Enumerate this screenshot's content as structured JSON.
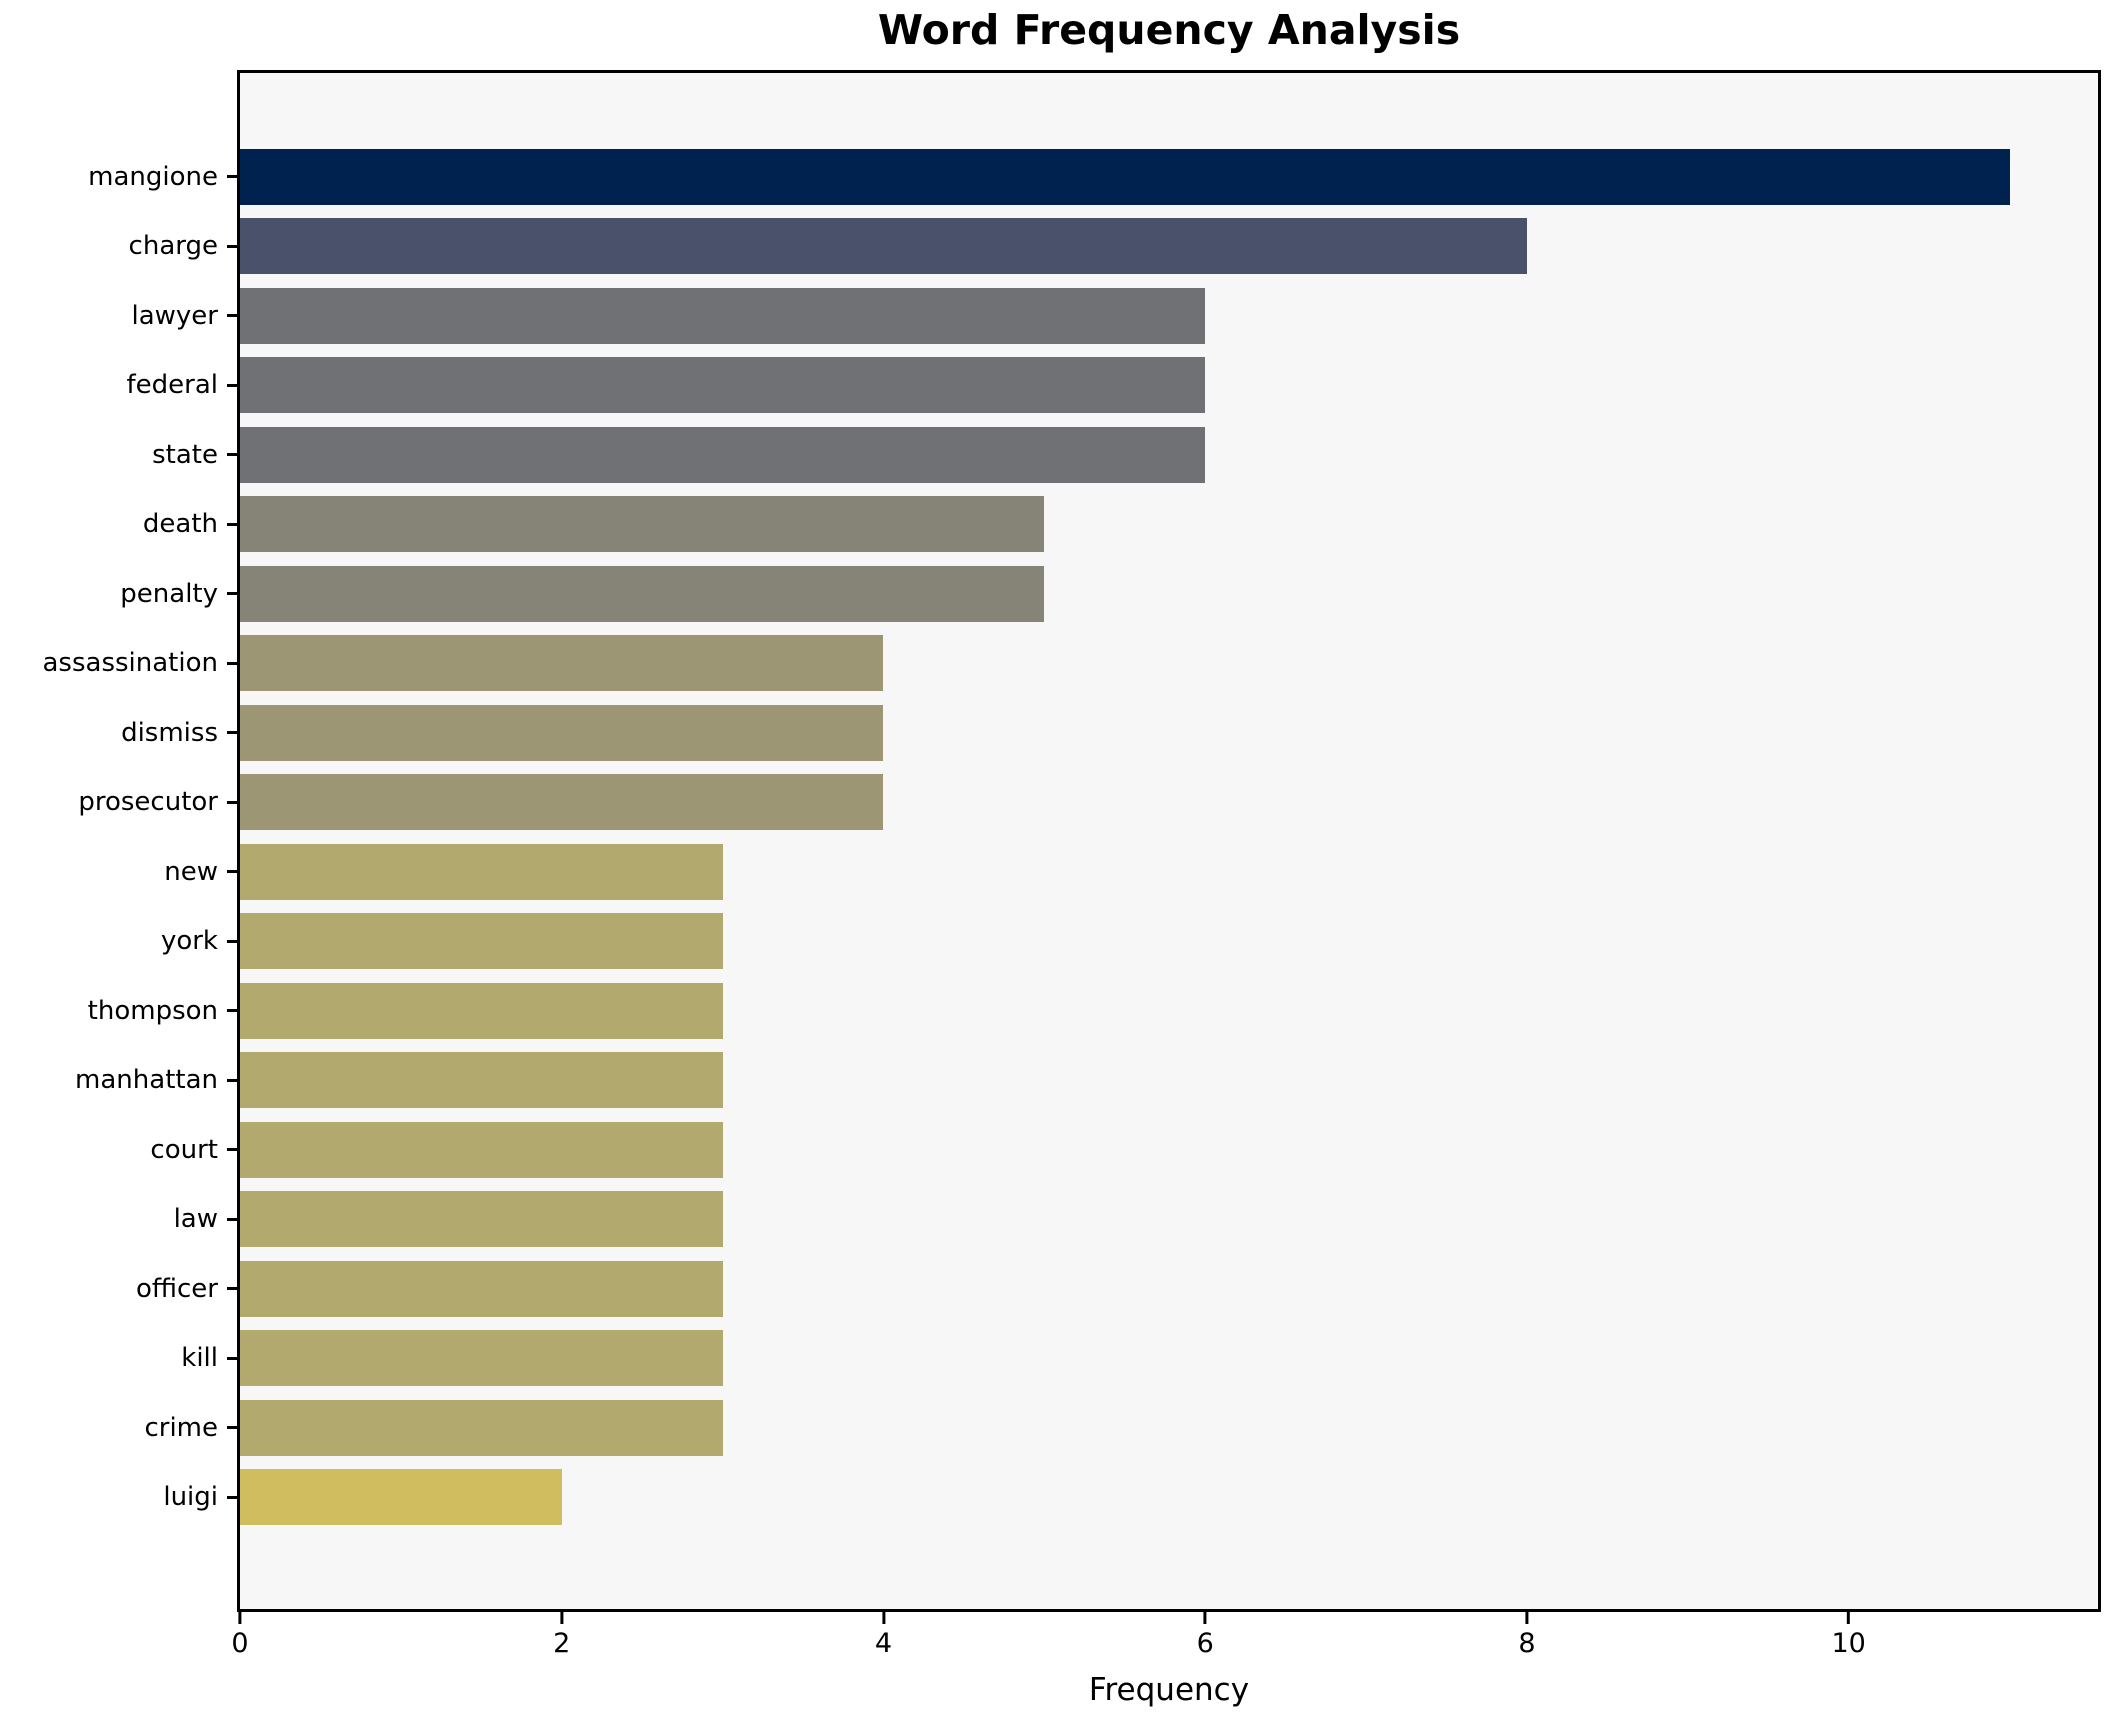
{
  "chart": {
    "title": "Word Frequency Analysis",
    "xlabel": "Frequency"
  },
  "chart_data": {
    "type": "bar",
    "orientation": "horizontal",
    "title": "Word Frequency Analysis",
    "xlabel": "Frequency",
    "ylabel": "",
    "categories": [
      "mangione",
      "charge",
      "lawyer",
      "federal",
      "state",
      "death",
      "penalty",
      "assassination",
      "dismiss",
      "prosecutor",
      "new",
      "york",
      "thompson",
      "manhattan",
      "court",
      "law",
      "officer",
      "kill",
      "crime",
      "luigi"
    ],
    "values": [
      11,
      8,
      6,
      6,
      6,
      5,
      5,
      4,
      4,
      4,
      3,
      3,
      3,
      3,
      3,
      3,
      3,
      3,
      3,
      2
    ],
    "bar_colors": [
      "#00224e",
      "#49516b",
      "#707174",
      "#707174",
      "#707174",
      "#868476",
      "#868476",
      "#9d9674",
      "#9d9674",
      "#9d9674",
      "#b2a96e",
      "#b2a96e",
      "#b2a96e",
      "#b2a96e",
      "#b2a96e",
      "#b2a96e",
      "#b2a96e",
      "#b2a96e",
      "#b2a96e",
      "#cfbd60"
    ],
    "xlim": [
      0,
      11.55
    ],
    "xticks": [
      0,
      2,
      4,
      6,
      8,
      10
    ],
    "grid": false,
    "legend": null,
    "plot_bg": "#f7f7f7",
    "figure_bg": "#ffffff",
    "spine_color": "#000000"
  }
}
